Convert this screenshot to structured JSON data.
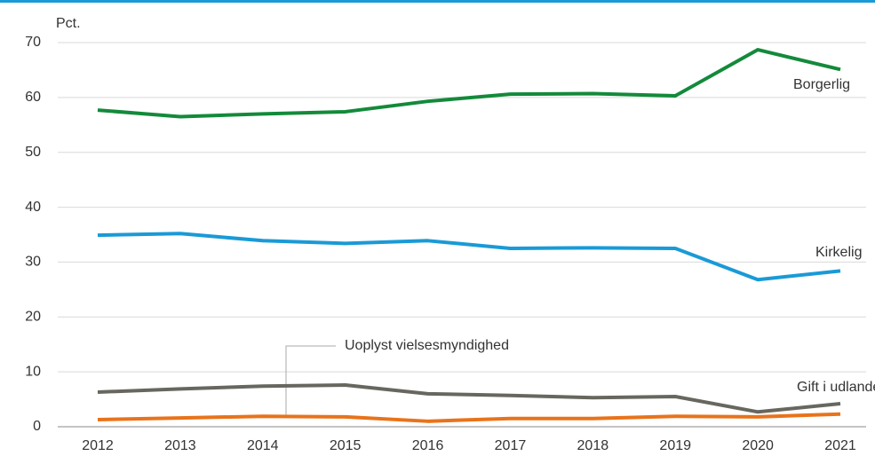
{
  "chart_data": {
    "type": "line",
    "y_label": "Pct.",
    "x": [
      "2012",
      "2013",
      "2014",
      "2015",
      "2016",
      "2017",
      "2018",
      "2019",
      "2020",
      "2021"
    ],
    "ylim": [
      0,
      70
    ],
    "yticks": [
      0,
      10,
      20,
      30,
      40,
      50,
      60,
      70
    ],
    "grid": true,
    "series": [
      {
        "name": "Borgerlig",
        "color": "#138a3a",
        "values": [
          57.7,
          56.5,
          57.0,
          57.4,
          59.3,
          60.6,
          60.7,
          60.3,
          68.7,
          65.1
        ]
      },
      {
        "name": "Kirkelig",
        "color": "#1a9ad6",
        "values": [
          34.9,
          35.2,
          33.9,
          33.4,
          33.9,
          32.5,
          32.6,
          32.5,
          26.8,
          28.4
        ]
      },
      {
        "name": "Gift i udlandet",
        "color": "#67675f",
        "values": [
          6.3,
          6.9,
          7.4,
          7.6,
          6.0,
          5.7,
          5.3,
          5.5,
          2.7,
          4.2
        ]
      },
      {
        "name": "Uoplyst vielsesmyndighed",
        "color": "#e8731b",
        "values": [
          1.3,
          1.6,
          1.9,
          1.8,
          1.0,
          1.5,
          1.5,
          1.9,
          1.8,
          2.3
        ]
      }
    ]
  }
}
